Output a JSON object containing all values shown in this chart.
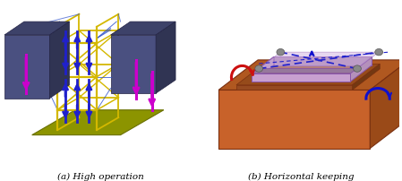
{
  "figsize": [
    4.49,
    2.03
  ],
  "dpi": 100,
  "background_color": "#ffffff",
  "caption_a": "(a) High operation",
  "caption_b": "(b) Horizontal keeping",
  "caption_fontsize": 7.5,
  "left_panel": {
    "base_color": "#8c9400",
    "base_edge": "#6a7000",
    "frame_color": "#d4b800",
    "block_color": "#4a5080",
    "block_edge": "#222244",
    "arrow_up_color": "#2020cc",
    "arrow_side_color": "#cc00cc",
    "diag_color": "#3355cc"
  },
  "right_panel": {
    "box_front_color": "#c8622a",
    "box_top_color": "#b05820",
    "box_right_color": "#9a4a18",
    "box_edge": "#7a3010",
    "tray_color": "#c8a0d0",
    "tray_edge": "#8855aa",
    "tray_inner_color": "#d0b0e0",
    "arrow_red_color": "#cc1010",
    "arrow_blue_color": "#1010cc",
    "dashed_color": "#2020cc",
    "connector_color": "#888888",
    "connector_edge": "#555555"
  }
}
